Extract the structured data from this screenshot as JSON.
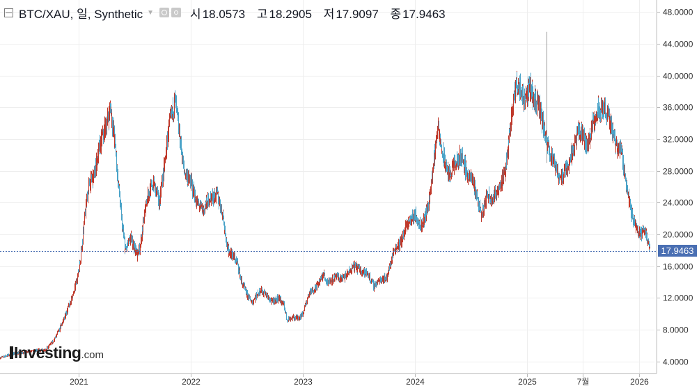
{
  "legend": {
    "symbol": "BTC/XAU, 일, Synthetic",
    "open_label": "시",
    "open": "18.0573",
    "high_label": "고",
    "high": "18.2905",
    "low_label": "저",
    "low": "17.9097",
    "close_label": "종",
    "close": "17.9463"
  },
  "logo": {
    "name": "Investing",
    "suffix": ".com"
  },
  "last_price_label": "17.9463",
  "colors": {
    "up": "#c0392b",
    "down": "#4aa3c8",
    "grid": "#eeeeee",
    "last_line": "#4a6fb3",
    "axis_text": "#333333"
  },
  "chart_data": {
    "type": "line",
    "title": "BTC/XAU, 일, Synthetic",
    "xlabel": "",
    "ylabel": "",
    "x_ticks": [
      "2021",
      "2022",
      "2023",
      "2024",
      "2025",
      "7월",
      "2026"
    ],
    "y_ticks": [
      "4.0000",
      "8.0000",
      "12.0000",
      "16.0000",
      "20.0000",
      "24.0000",
      "28.0000",
      "32.0000",
      "36.0000",
      "40.0000",
      "44.0000",
      "48.0000"
    ],
    "ylim": [
      2.5,
      49.5
    ],
    "xlim": [
      "2020-04-20",
      "2026-02-20"
    ],
    "last_value": 17.9463,
    "grid": true,
    "series": [
      {
        "x": [
          "2020-04-20",
          "2020-06-01",
          "2020-08-01",
          "2020-09-15",
          "2020-10-15",
          "2020-11-15",
          "2020-12-15",
          "2021-01-01",
          "2021-01-10",
          "2021-02-01",
          "2021-02-20",
          "2021-03-10",
          "2021-04-05",
          "2021-04-15",
          "2021-05-01",
          "2021-05-15",
          "2021-06-01",
          "2021-06-20",
          "2021-07-10",
          "2021-07-20",
          "2021-08-10",
          "2021-09-01",
          "2021-09-20",
          "2021-10-10",
          "2021-10-20",
          "2021-11-10",
          "2021-11-25",
          "2021-12-10",
          "2022-01-01",
          "2022-01-20",
          "2022-02-10",
          "2022-03-01",
          "2022-03-28",
          "2022-04-15",
          "2022-05-01",
          "2022-05-15",
          "2022-06-01",
          "2022-06-15",
          "2022-07-01",
          "2022-07-20",
          "2022-08-15",
          "2022-09-01",
          "2022-09-20",
          "2022-10-15",
          "2022-11-01",
          "2022-11-10",
          "2022-11-25",
          "2022-12-15",
          "2023-01-01",
          "2023-01-20",
          "2023-02-15",
          "2023-03-10",
          "2023-03-20",
          "2023-04-15",
          "2023-05-15",
          "2023-06-15",
          "2023-07-10",
          "2023-08-01",
          "2023-08-20",
          "2023-09-15",
          "2023-10-01",
          "2023-10-25",
          "2023-11-15",
          "2023-12-10",
          "2024-01-01",
          "2024-01-25",
          "2024-02-15",
          "2024-03-01",
          "2024-03-14",
          "2024-04-01",
          "2024-04-20",
          "2024-05-15",
          "2024-06-01",
          "2024-06-20",
          "2024-07-10",
          "2024-08-05",
          "2024-08-25",
          "2024-09-10",
          "2024-10-01",
          "2024-10-20",
          "2024-11-10",
          "2024-11-25",
          "2024-12-05",
          "2024-12-20",
          "2025-01-10",
          "2025-01-25",
          "2025-02-10",
          "2025-03-01",
          "2025-04-01",
          "2025-04-20",
          "2025-05-10",
          "2025-05-25",
          "2025-06-15",
          "2025-07-01",
          "2025-07-15",
          "2025-07-30",
          "2025-08-15",
          "2025-09-01",
          "2025-09-20",
          "2025-10-06",
          "2025-10-20",
          "2025-11-05",
          "2025-11-20",
          "2025-12-05",
          "2025-12-20",
          "2026-01-05",
          "2026-01-20",
          "2026-02-05"
        ],
        "values": [
          4.5,
          5.0,
          5.3,
          5.5,
          6.8,
          9.5,
          12.5,
          15.5,
          18.5,
          26.0,
          27.5,
          31.0,
          34.5,
          36.0,
          30.5,
          24.0,
          18.0,
          19.5,
          17.5,
          18.5,
          24.5,
          26.5,
          24.0,
          29.5,
          33.0,
          37.0,
          32.5,
          28.0,
          26.5,
          24.0,
          23.0,
          24.5,
          25.0,
          22.5,
          18.0,
          17.5,
          16.5,
          14.0,
          12.5,
          11.5,
          13.0,
          12.5,
          11.5,
          12.0,
          11.0,
          9.3,
          9.5,
          9.5,
          10.0,
          12.5,
          13.5,
          15.0,
          14.0,
          14.5,
          14.5,
          16.0,
          15.5,
          15.0,
          13.5,
          14.5,
          14.5,
          18.0,
          19.0,
          21.5,
          22.5,
          21.0,
          24.0,
          28.5,
          33.5,
          30.0,
          27.5,
          29.0,
          30.0,
          27.5,
          26.5,
          22.5,
          25.0,
          24.5,
          26.0,
          27.5,
          35.0,
          38.5,
          39.0,
          37.0,
          38.5,
          37.0,
          36.0,
          32.0,
          28.5,
          27.0,
          28.5,
          30.0,
          33.0,
          32.5,
          31.0,
          33.5,
          35.5,
          36.0,
          35.0,
          33.0,
          31.0,
          30.5,
          26.0,
          23.0,
          21.0,
          20.0,
          20.5,
          18.0
        ]
      }
    ]
  }
}
